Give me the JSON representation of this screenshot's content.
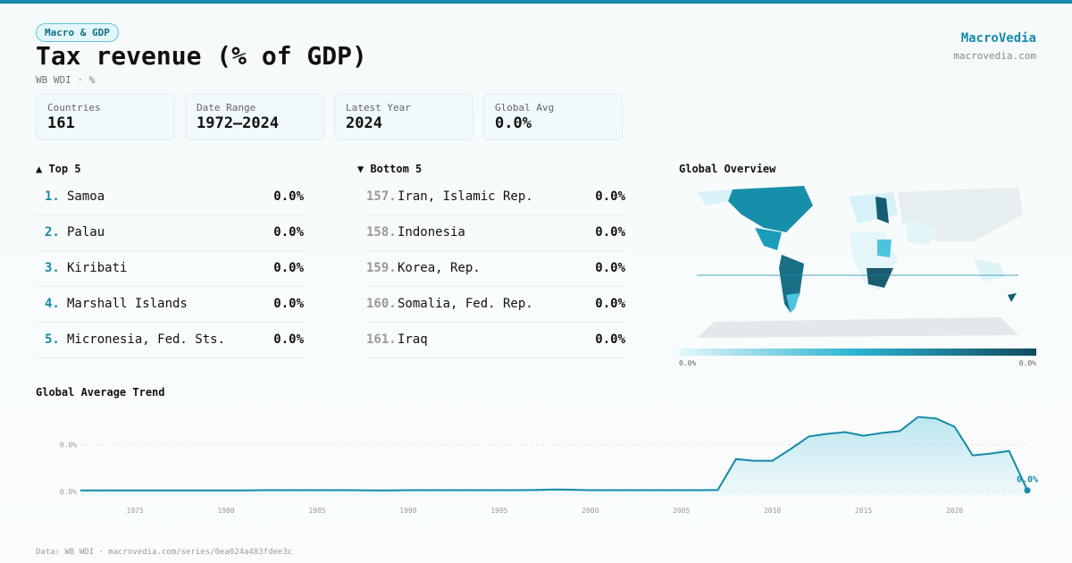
{
  "header": {
    "badge": "Macro & GDP",
    "title": "Tax revenue (% of GDP)",
    "subtitle": "WB WDI · %",
    "brand": "MacroVedia",
    "domain": "macrovedia.com"
  },
  "stats": [
    {
      "label": "Countries",
      "value": "161"
    },
    {
      "label": "Date Range",
      "value": "1972–2024"
    },
    {
      "label": "Latest Year",
      "value": "2024"
    },
    {
      "label": "Global Avg",
      "value": "0.0%"
    }
  ],
  "top": {
    "title": "▲ Top 5",
    "rows": [
      {
        "rank": "1.",
        "name": "Samoa",
        "value": "0.0%"
      },
      {
        "rank": "2.",
        "name": "Palau",
        "value": "0.0%"
      },
      {
        "rank": "3.",
        "name": "Kiribati",
        "value": "0.0%"
      },
      {
        "rank": "4.",
        "name": "Marshall Islands",
        "value": "0.0%"
      },
      {
        "rank": "5.",
        "name": "Micronesia, Fed. Sts.",
        "value": "0.0%"
      }
    ]
  },
  "bottom": {
    "title": "▼ Bottom 5",
    "rows": [
      {
        "rank": "157.",
        "name": "Iran, Islamic Rep.",
        "value": "0.0%"
      },
      {
        "rank": "158.",
        "name": "Indonesia",
        "value": "0.0%"
      },
      {
        "rank": "159.",
        "name": "Korea, Rep.",
        "value": "0.0%"
      },
      {
        "rank": "160.",
        "name": "Somalia, Fed. Rep.",
        "value": "0.0%"
      },
      {
        "rank": "161.",
        "name": "Iraq",
        "value": "0.0%"
      }
    ]
  },
  "map": {
    "title": "Global Overview",
    "legend_min": "0.0%",
    "legend_max": "0.0%"
  },
  "chart_data": {
    "type": "line",
    "title": "Global Average Trend",
    "color": "#168aa8",
    "x": [
      1972,
      1973,
      1974,
      1975,
      1976,
      1977,
      1978,
      1979,
      1980,
      1981,
      1982,
      1983,
      1984,
      1985,
      1986,
      1987,
      1988,
      1989,
      1990,
      1991,
      1992,
      1993,
      1994,
      1995,
      1996,
      1997,
      1998,
      1999,
      2000,
      2001,
      2002,
      2003,
      2004,
      2005,
      2006,
      2007,
      2008,
      2009,
      2010,
      2011,
      2012,
      2013,
      2014,
      2015,
      2016,
      2017,
      2018,
      2019,
      2020,
      2021,
      2022,
      2023,
      2024
    ],
    "values": [
      0.0004,
      0.0004,
      0.0004,
      0.0004,
      0.0004,
      0.0004,
      0.0004,
      0.0004,
      0.0004,
      0.0004,
      0.0005,
      0.0005,
      0.0005,
      0.0005,
      0.0005,
      0.0005,
      0.0004,
      0.0004,
      0.0005,
      0.0005,
      0.0005,
      0.0005,
      0.0005,
      0.0005,
      0.0005,
      0.0006,
      0.0008,
      0.0007,
      0.0005,
      0.0005,
      0.0005,
      0.0005,
      0.0005,
      0.0005,
      0.0005,
      0.0006,
      0.0138,
      0.0131,
      0.0131,
      0.0181,
      0.0235,
      0.0246,
      0.0254,
      0.0238,
      0.025,
      0.0258,
      0.0319,
      0.0312,
      0.0277,
      0.0154,
      0.0162,
      0.0173,
      0.0004
    ],
    "end_label": "0.0%",
    "xlim": [
      1972,
      2024
    ],
    "xticks": [
      1975,
      1980,
      1985,
      1990,
      1995,
      2000,
      2005,
      2010,
      2015,
      2020
    ],
    "ylim": [
      -0.002,
      0.034
    ],
    "yticks": [
      {
        "value": 0,
        "label": "0.0%"
      },
      {
        "value": 0.02,
        "label": "0.0%"
      }
    ],
    "grid": true
  },
  "footer": "Data: WB WDI · macrovedia.com/series/0ea024a483fdee3c"
}
